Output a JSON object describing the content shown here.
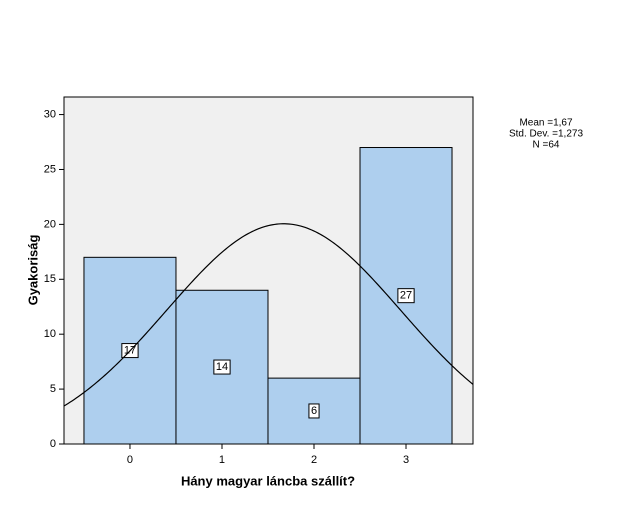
{
  "chart_data": {
    "type": "histogram",
    "x_label": "Hány magyar láncba szállít?",
    "y_label": "Gyakoriság",
    "bins": [
      -0.5,
      0.5,
      1.5,
      2.5,
      3.5
    ],
    "values": [
      17,
      14,
      6,
      27
    ],
    "color": "#aecfee",
    "background": "#f0f0f0",
    "xlim": [
      -0.717,
      3.728
    ],
    "xticks": [
      0,
      1,
      2,
      3
    ],
    "ylim": [
      0,
      31.6
    ],
    "yticks": [
      0,
      5,
      10,
      15,
      20,
      25,
      30
    ],
    "normal_curve": true,
    "stats": {
      "mean": {
        "value": 1.67,
        "label": "Mean =1,67"
      },
      "std_dev": {
        "value": 1.273,
        "label": "Std. Dev. =1,273"
      },
      "n": {
        "value": 64,
        "label": "N =64"
      }
    }
  }
}
